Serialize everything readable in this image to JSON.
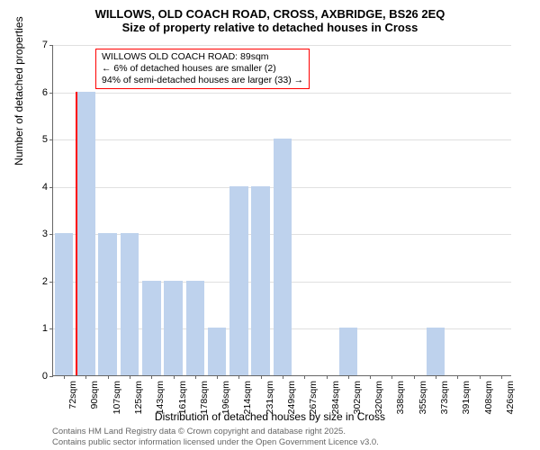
{
  "title_line1": "WILLOWS, OLD COACH ROAD, CROSS, AXBRIDGE, BS26 2EQ",
  "title_line2": "Size of property relative to detached houses in Cross",
  "y_label": "Number of detached properties",
  "x_label": "Distribution of detached houses by size in Cross",
  "chart": {
    "type": "bar",
    "ylim": [
      0,
      7
    ],
    "ytick_step": 1,
    "bar_color": "#bed2ed",
    "marker_color": "#ff0000",
    "grid_color": "#e0e0e0",
    "axis_color": "#666666",
    "background_color": "#ffffff",
    "x_ticks": [
      "72sqm",
      "90sqm",
      "107sqm",
      "125sqm",
      "143sqm",
      "161sqm",
      "178sqm",
      "196sqm",
      "214sqm",
      "231sqm",
      "249sqm",
      "267sqm",
      "284sqm",
      "302sqm",
      "320sqm",
      "338sqm",
      "355sqm",
      "373sqm",
      "391sqm",
      "408sqm",
      "426sqm"
    ],
    "bars": [
      3,
      6,
      3,
      3,
      2,
      2,
      2,
      1,
      4,
      4,
      5,
      0,
      0,
      1,
      0,
      0,
      0,
      1,
      0,
      0,
      0
    ],
    "marker_index": 1,
    "marker_value": 6
  },
  "annotation": {
    "line1": "WILLOWS OLD COACH ROAD: 89sqm",
    "line2": "← 6% of detached houses are smaller (2)",
    "line3": "94% of semi-detached houses are larger (33) →",
    "border_color": "#ff0000",
    "fontsize": 10.5
  },
  "footer": {
    "line1": "Contains HM Land Registry data © Crown copyright and database right 2025.",
    "line2": "Contains public sector information licensed under the Open Government Licence v3.0.",
    "color": "#666666"
  }
}
